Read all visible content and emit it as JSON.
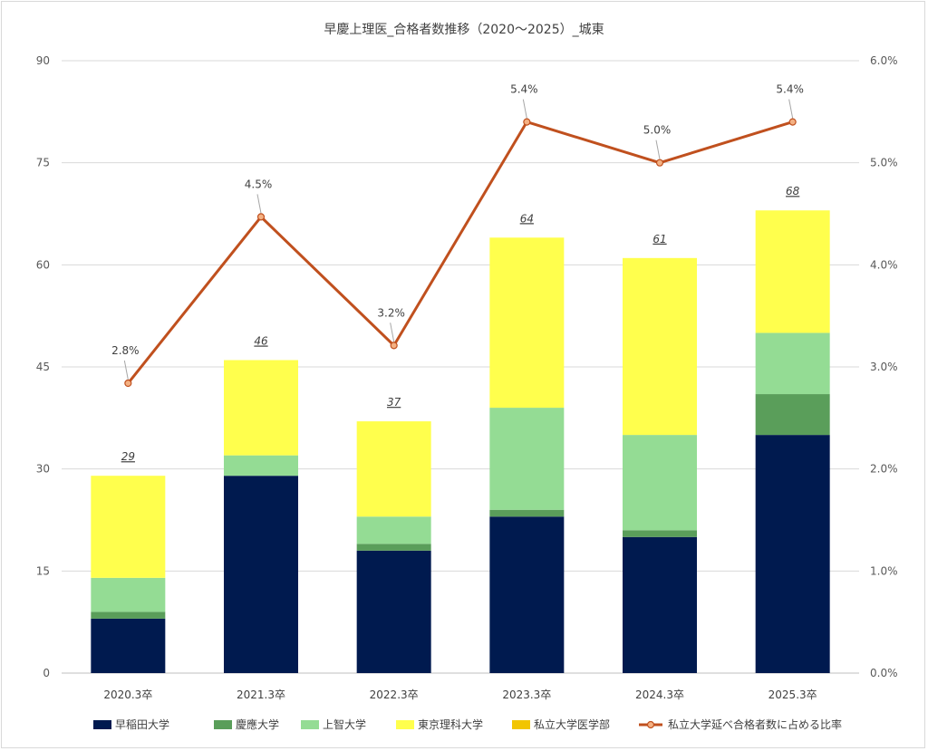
{
  "chart_data": {
    "type": "bar",
    "stacked": true,
    "title": "早慶上理医_合格者数推移（2020～2025）_城東",
    "categories": [
      "2020.3卒",
      "2021.3卒",
      "2022.3卒",
      "2023.3卒",
      "2024.3卒",
      "2025.3卒"
    ],
    "y_left": {
      "lim": [
        0,
        90
      ],
      "ticks": [
        "0",
        "15",
        "30",
        "45",
        "60",
        "75",
        "90"
      ],
      "tick_values": [
        0,
        15,
        30,
        45,
        60,
        75,
        90
      ]
    },
    "y_right": {
      "lim": [
        0,
        6
      ],
      "ticks": [
        "0.0%",
        "1.0%",
        "2.0%",
        "3.0%",
        "4.0%",
        "5.0%",
        "6.0%"
      ],
      "tick_values": [
        0,
        1,
        2,
        3,
        4,
        5,
        6
      ]
    },
    "grid": true,
    "legend_position": "bottom",
    "series": [
      {
        "name": "早稲田大学",
        "color": "#001a4f",
        "values": [
          8,
          29,
          18,
          23,
          20,
          35
        ]
      },
      {
        "name": "慶應大学",
        "color": "#5a9e5a",
        "values": [
          1,
          0,
          1,
          1,
          1,
          6
        ]
      },
      {
        "name": "上智大学",
        "color": "#94dc94",
        "values": [
          5,
          3,
          4,
          15,
          14,
          9
        ]
      },
      {
        "name": "東京理科大学",
        "color": "#ffff4d",
        "values": [
          15,
          14,
          14,
          25,
          26,
          18
        ]
      },
      {
        "name": "私立大学医学部",
        "color": "#f2c500",
        "values": [
          0,
          0,
          0,
          0,
          0,
          0
        ]
      }
    ],
    "totals": [
      "29",
      "46",
      "37",
      "64",
      "61",
      "68"
    ],
    "line_series": {
      "name": "私立大学延べ合格者数に占める比率",
      "color": "#c0501e",
      "axis": "right",
      "values": [
        2.84,
        4.47,
        3.21,
        5.4,
        5.0,
        5.4
      ],
      "labels": [
        "2.8%",
        "4.5%",
        "3.2%",
        "5.4%",
        "5.0%",
        "5.4%"
      ]
    }
  }
}
